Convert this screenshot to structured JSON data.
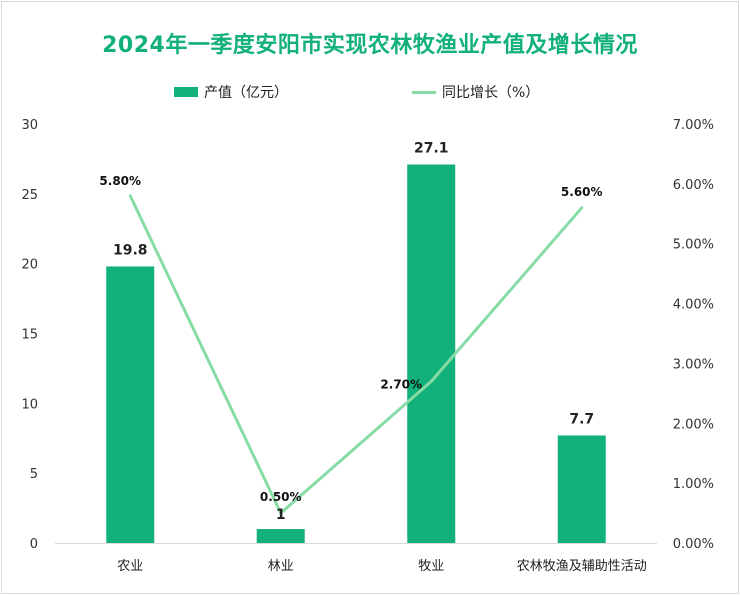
{
  "title": "2024年一季度安阳市实现农林牧渔业产值及增长情况",
  "legend": {
    "bar_label": "产值（亿元）",
    "line_label": "同比增长（%）"
  },
  "colors": {
    "title": "#12b07a",
    "bar": "#12b07a",
    "line": "#86dca4"
  },
  "chart_data": {
    "type": "bar",
    "title": "2024年一季度安阳市实现农林牧渔业产值及增长情况",
    "categories": [
      "农业",
      "林业",
      "牧业",
      "农林牧渔及辅助性活动"
    ],
    "series": [
      {
        "name": "产值（亿元）",
        "type": "bar",
        "axis": "left",
        "values": [
          19.8,
          1,
          27.1,
          7.7
        ],
        "labels": [
          "19.8",
          "1",
          "27.1",
          "7.7"
        ]
      },
      {
        "name": "同比增长（%）",
        "type": "line",
        "axis": "right",
        "values": [
          5.8,
          0.5,
          2.7,
          5.6
        ],
        "labels": [
          "5.80%",
          "0.50%",
          "2.70%",
          "5.60%"
        ]
      }
    ],
    "y_left": {
      "min": 0,
      "max": 30,
      "ticks": [
        "0",
        "5",
        "10",
        "15",
        "20",
        "25",
        "30"
      ],
      "tick_values": [
        0,
        5,
        10,
        15,
        20,
        25,
        30
      ]
    },
    "y_right": {
      "min": 0,
      "max": 7,
      "ticks": [
        "0.00%",
        "1.00%",
        "2.00%",
        "3.00%",
        "4.00%",
        "5.00%",
        "6.00%",
        "7.00%"
      ],
      "tick_values": [
        0,
        1,
        2,
        3,
        4,
        5,
        6,
        7
      ]
    },
    "legend_position": "top-center",
    "grid": false
  }
}
